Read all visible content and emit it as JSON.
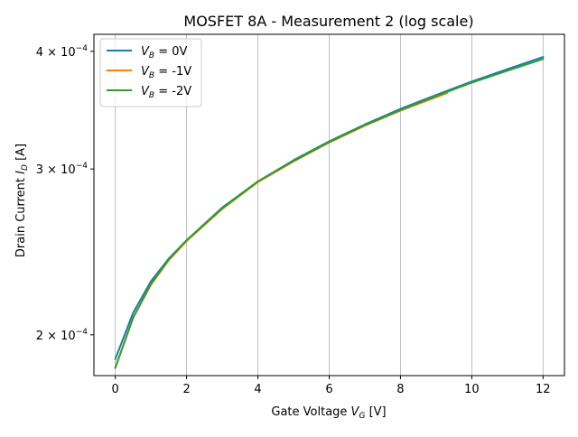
{
  "chart_data": {
    "type": "line",
    "title": "MOSFET 8A - Measurement 2 (log scale)",
    "xlabel": {
      "main": "Gate Voltage ",
      "var": "V",
      "sub": "G",
      "unit": " [V]"
    },
    "ylabel": {
      "main": "Drain Current ",
      "var": "I",
      "sub": "D",
      "unit": " [A]"
    },
    "xlim": [
      -0.6,
      12.6
    ],
    "ylim": [
      0.000181,
      0.000417
    ],
    "y_scale": "log",
    "grid": "x-major",
    "legend_position": "top-left",
    "x_ticks": [
      0,
      2,
      4,
      6,
      8,
      10,
      12
    ],
    "x_tick_labels": [
      "0",
      "2",
      "4",
      "6",
      "8",
      "10",
      "12"
    ],
    "y_ticks": [
      {
        "value": 0.0002,
        "mantissa": "2",
        "exponent": "−4"
      },
      {
        "value": 0.0003,
        "mantissa": "3",
        "exponent": "−4"
      },
      {
        "value": 0.0004,
        "mantissa": "4",
        "exponent": "−4"
      }
    ],
    "series": [
      {
        "name": "0V",
        "legend_var": "V",
        "legend_sub": "B",
        "legend_value": " = 0V",
        "color": "#1f77b4",
        "x": [
          0,
          0.5,
          1,
          1.5,
          2,
          3,
          4,
          5,
          6,
          7,
          8,
          9,
          10,
          11,
          12
        ],
        "y": [
          0.0001885,
          0.000211,
          0.000228,
          0.000241,
          0.000252,
          0.000273,
          0.000291,
          0.0003065,
          0.000321,
          0.0003345,
          0.0003475,
          0.0003595,
          0.0003715,
          0.000383,
          0.0003945
        ]
      },
      {
        "name": "-1V",
        "legend_var": "V",
        "legend_sub": "B",
        "legend_value": " = -1V",
        "color": "#ff7f0e",
        "x": [
          0,
          0.5,
          1,
          1.5,
          2,
          3,
          4,
          5,
          6,
          7,
          8,
          9,
          9.3
        ],
        "y": [
          0.0001845,
          0.0002085,
          0.000226,
          0.00024,
          0.0002515,
          0.000272,
          0.0002905,
          0.0003055,
          0.00032,
          0.0003335,
          0.000346,
          0.0003575,
          0.000361
        ]
      },
      {
        "name": "-2V",
        "legend_var": "V",
        "legend_sub": "B",
        "legend_value": " = -2V",
        "color": "#2ca02c",
        "x": [
          0,
          0.5,
          1,
          1.5,
          2,
          3,
          4,
          5,
          6,
          7,
          8,
          9,
          10,
          11,
          12
        ],
        "y": [
          0.0001845,
          0.0002085,
          0.0002265,
          0.0002405,
          0.000252,
          0.0002725,
          0.000291,
          0.000306,
          0.0003205,
          0.000334,
          0.0003465,
          0.0003585,
          0.0003705,
          0.0003815,
          0.0003925
        ]
      }
    ]
  }
}
